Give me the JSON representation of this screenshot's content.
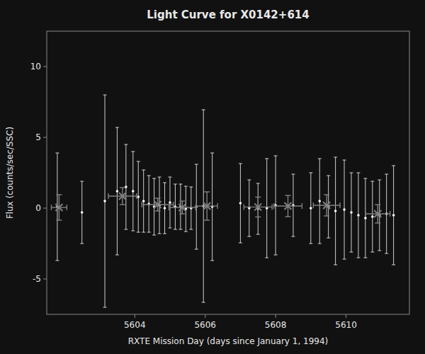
{
  "chart_data": {
    "type": "scatter",
    "title": "Light Curve for X0142+614",
    "xlabel": "RXTE Mission Day (days since January 1, 1994)",
    "ylabel": "Flux (counts/sec/SSC)",
    "xlim": [
      5601.5,
      5611.8
    ],
    "ylim": [
      -7.5,
      12.5
    ],
    "xticks": [
      5604,
      5606,
      5608,
      5610
    ],
    "yticks": [
      -5,
      0,
      5,
      10
    ],
    "series": [
      {
        "color": "#ffffff",
        "marker": "point",
        "x": [
          5601.8,
          5602.5,
          5603.15,
          5603.5,
          5603.75,
          5603.95,
          5604.1,
          5604.25,
          5604.4,
          5604.55,
          5604.7,
          5604.85,
          5605.0,
          5605.15,
          5605.3,
          5605.45,
          5605.6,
          5605.75,
          5605.95,
          5606.2,
          5607.0,
          5607.25,
          5607.5,
          5607.75,
          5608.0,
          5608.5,
          5609.0,
          5609.25,
          5609.5,
          5609.7,
          5609.95,
          5610.15,
          5610.35,
          5610.55,
          5610.75,
          5610.95,
          5611.15,
          5611.35
        ],
        "values": [
          0.1,
          -0.3,
          0.5,
          1.2,
          1.5,
          1.2,
          0.8,
          0.5,
          0.3,
          0.1,
          0.2,
          0.0,
          0.4,
          0.1,
          0.1,
          -0.05,
          0.0,
          0.1,
          0.15,
          0.1,
          0.35,
          0.0,
          -0.05,
          0.0,
          0.2,
          0.2,
          0.0,
          0.5,
          0.1,
          -0.2,
          -0.1,
          -0.3,
          -0.5,
          -0.7,
          -0.6,
          -0.5,
          -0.4,
          -0.5
        ],
        "yerr": [
          3.8,
          2.2,
          7.5,
          4.5,
          3.0,
          2.8,
          2.5,
          2.2,
          2.0,
          2.0,
          2.0,
          1.8,
          1.8,
          1.6,
          1.6,
          1.6,
          1.5,
          3.0,
          6.8,
          3.8,
          2.8,
          2.0,
          1.8,
          3.5,
          3.5,
          2.2,
          2.5,
          3.0,
          2.2,
          3.8,
          3.5,
          2.8,
          3.0,
          2.8,
          2.5,
          2.5,
          2.8,
          3.5
        ]
      },
      {
        "color": "gray",
        "marker": "x",
        "x": [
          5601.85,
          5603.65,
          5604.65,
          5605.35,
          5606.05,
          5607.5,
          5608.35,
          5609.45,
          5610.9
        ],
        "values": [
          0.05,
          0.85,
          0.25,
          0.05,
          0.15,
          0.08,
          0.15,
          0.2,
          -0.4
        ],
        "xerr": [
          0.22,
          0.4,
          0.45,
          0.38,
          0.3,
          0.4,
          0.4,
          0.38,
          0.35
        ],
        "yerr": [
          0.9,
          0.6,
          0.45,
          0.45,
          1.0,
          0.7,
          0.75,
          0.75,
          0.65
        ]
      }
    ]
  }
}
